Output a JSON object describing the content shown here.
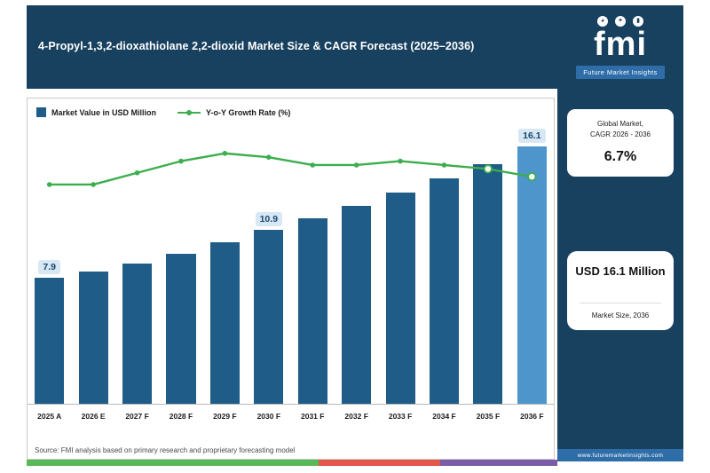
{
  "header": {
    "title": "4-Propyl-1,3,2-dioxathiolane 2,2-dioxid Market Size & CAGR Forecast (2025–2036)",
    "logo": {
      "text": "fmi",
      "tagline": "Future Market Insights",
      "badges": [
        "pie-chart-icon",
        "lightbulb-icon",
        "bar-chart-icon"
      ]
    }
  },
  "sidebar": {
    "card1": {
      "line1": "Global Market,",
      "line2": "CAGR 2026 - 2036",
      "value": "6.7%"
    },
    "card2": {
      "value": "USD 16.1 Million",
      "caption": "Market Size, 2036"
    },
    "website": "www.futuremarketinsights.com"
  },
  "legend": {
    "bar_label": "Market Value in USD Million",
    "line_label": "Y-o-Y Growth Rate (%)"
  },
  "source": "Source: FMI analysis based on primary research and proprietary forecasting model",
  "colors": {
    "navy": "#18405F",
    "band_blue": "#2E6DA8",
    "bar": "#1F5C88",
    "bar_highlight": "#4E95CC",
    "green": "#3CAE4E",
    "label_bg": "#D8E7F4",
    "label_text": "#14466F",
    "panel_border": "#C9C9C9",
    "stripe_green": "#57B957",
    "stripe_red": "#E2574C",
    "stripe_purple": "#7A5CA8"
  },
  "chart_data": {
    "type": "bar",
    "subtype": "bar+line combo",
    "title": "4-Propyl-1,3,2-dioxathiolane 2,2-dioxid Market Size & CAGR Forecast (2025–2036)",
    "categories": [
      "2025 A",
      "2026 E",
      "2027 F",
      "2028 F",
      "2029 F",
      "2030 F",
      "2031 F",
      "2032 F",
      "2033 F",
      "2034 F",
      "2035 F",
      "2036 F"
    ],
    "series": [
      {
        "name": "Market Value in USD Million",
        "type": "bar",
        "unit": "USD Million",
        "values": [
          7.9,
          8.3,
          8.8,
          9.4,
          10.1,
          10.9,
          11.6,
          12.4,
          13.2,
          14.1,
          15.0,
          16.1
        ],
        "labeled_indices": [
          0,
          5,
          11
        ],
        "highlight_index": 11
      },
      {
        "name": "Y-o-Y Growth Rate (%)",
        "type": "line",
        "unit": "%",
        "values": [
          6.5,
          6.5,
          6.8,
          7.1,
          7.3,
          7.2,
          7.0,
          7.0,
          7.1,
          7.0,
          6.9,
          6.7
        ]
      }
    ],
    "xlabel": "",
    "ylabel": "",
    "ylim": [
      0,
      18
    ],
    "grid": false,
    "legend_position": "top-left",
    "annotations": {
      "cagr_2026_2036": "6.7%",
      "market_size_2036": "USD 16.1 Million"
    }
  }
}
